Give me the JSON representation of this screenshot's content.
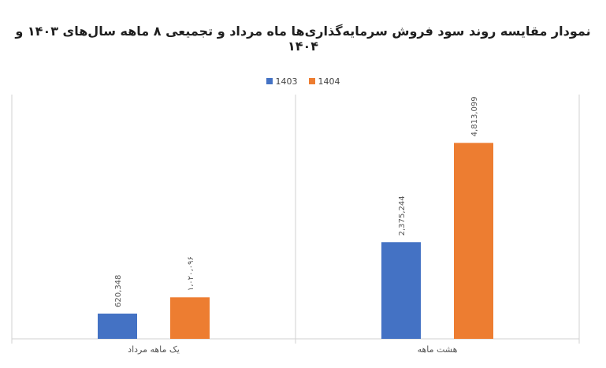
{
  "chart_data": {
    "type": "bar",
    "title": "نمودار مقایسه روند سود فروش سرمایه‌گذاری‌ها ماه مرداد و تجمیعی ۸ ماهه سال‌های ۱۴۰۳ و ۱۴۰۴",
    "categories": [
      "یک ماهه مرداد",
      "هشت ماهه"
    ],
    "series": [
      {
        "name": "1403",
        "color": "#4472C4",
        "values": [
          620348,
          2375244
        ],
        "labels": [
          "620,348",
          "2,375,244"
        ]
      },
      {
        "name": "1404",
        "color": "#ED7D31",
        "values": [
          1020096,
          4813099
        ],
        "labels": [
          "۱،۰۲۰،۰۹۶",
          "4,813,099"
        ]
      }
    ],
    "ylim": [
      0,
      6000000
    ],
    "grid": false,
    "legend": "top-center",
    "xlabel": "",
    "ylabel": ""
  }
}
